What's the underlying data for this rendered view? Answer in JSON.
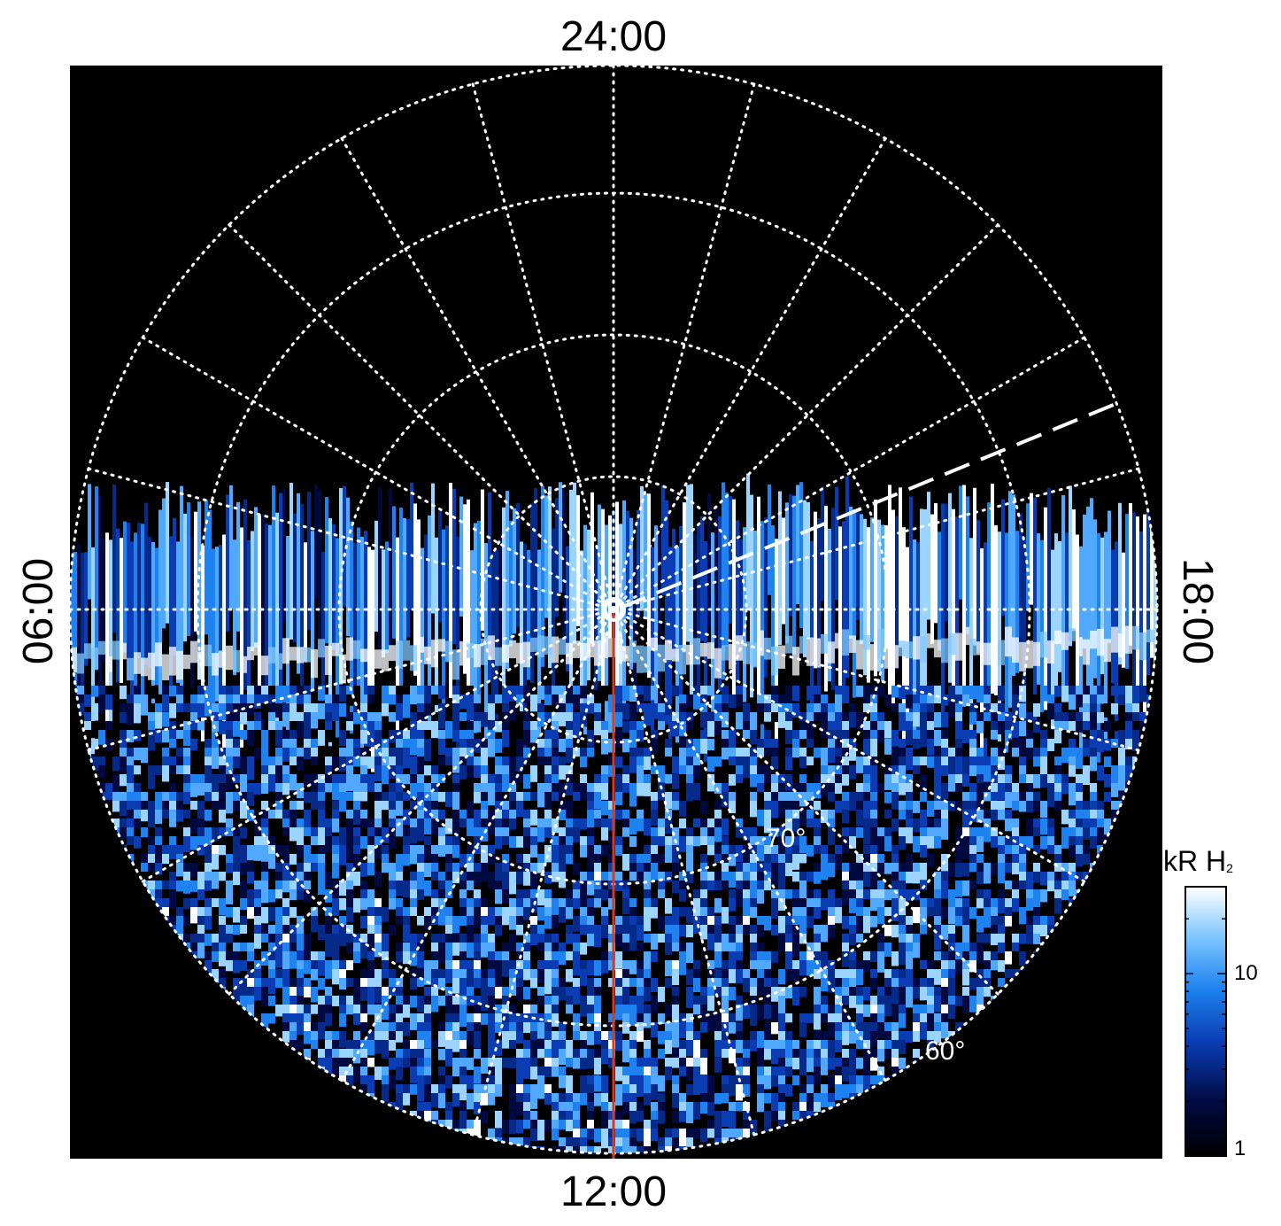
{
  "local_time_labels": {
    "top": "24:00",
    "bottom": "12:00",
    "left": "06:00",
    "right": "18:00"
  },
  "latitude_labels": {
    "inner": "70°",
    "outer": "60°"
  },
  "colorbar": {
    "title": "kR H",
    "title_subscript": "2",
    "scale": "log",
    "range": [
      1,
      30
    ],
    "tick_labels": [
      "10",
      "1"
    ],
    "colors": [
      "#000000",
      "#000a40",
      "#0a3cb4",
      "#1e82f0",
      "#82c8ff",
      "#ffffff"
    ]
  },
  "colors": {
    "background": "#000000",
    "grid": "#ffffff",
    "meridian_line": "#d83a1a"
  }
}
